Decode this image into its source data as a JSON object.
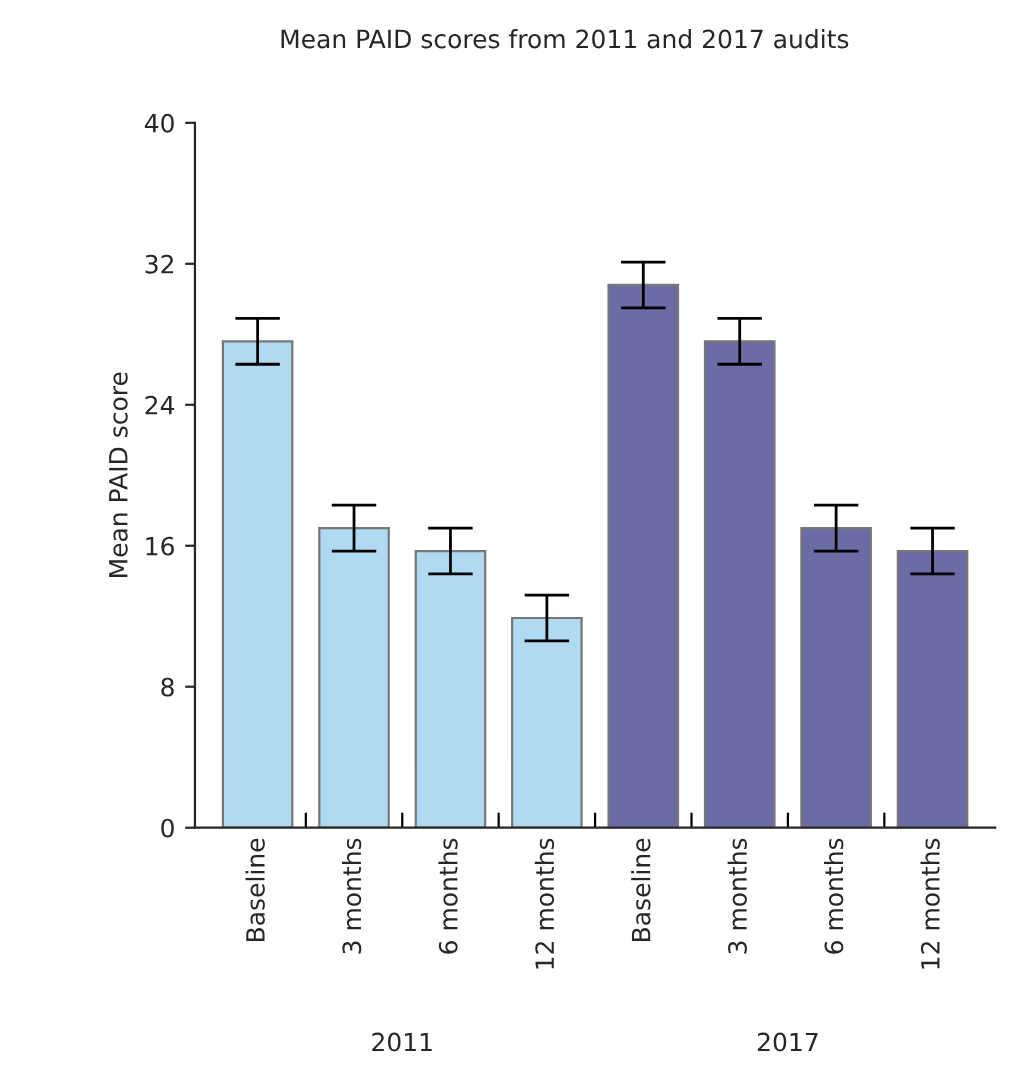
{
  "chart_data": {
    "type": "bar",
    "title": "Mean PAID scores from 2011 and 2017 audits",
    "ylabel": "Mean PAID score",
    "categories": [
      "Baseline",
      "3 months",
      "6 months",
      "12 months",
      "Baseline",
      "3 months",
      "6 months",
      "12 months"
    ],
    "values": [
      27.6,
      17.0,
      15.7,
      11.9,
      30.8,
      27.6,
      17.0,
      15.7
    ],
    "errors": [
      1.3,
      1.3,
      1.3,
      1.3,
      1.3,
      1.3,
      1.3,
      1.3
    ],
    "colors": [
      "#afdaf1",
      "#afdaf1",
      "#afdaf1",
      "#afdaf1",
      "#6b6ba6",
      "#6b6ba6",
      "#6b6ba6",
      "#6b6ba6"
    ],
    "annotations": [
      "2011",
      "2017"
    ],
    "ylim": [
      0,
      40
    ],
    "yticks": [
      0,
      8,
      16,
      24,
      32,
      40
    ],
    "grid": false,
    "legend": false
  }
}
